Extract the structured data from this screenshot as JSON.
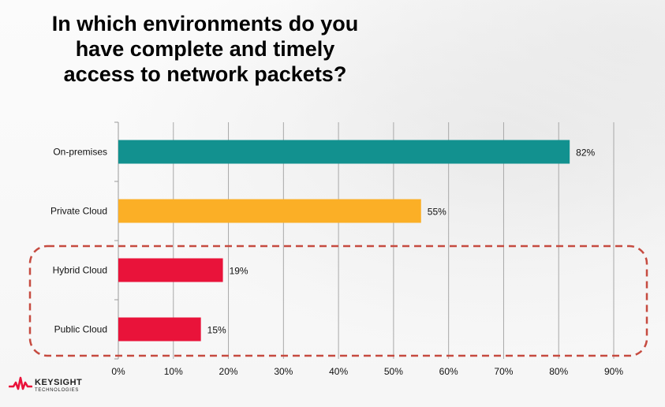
{
  "title_lines": [
    "In which environments do you",
    "have complete and timely",
    "access to network packets?"
  ],
  "logo": {
    "name": "KEYSIGHT",
    "sub": "TECHNOLOGIES",
    "icon": "keysight-wave-icon"
  },
  "colors": {
    "teal": "#12918f",
    "orange": "#fbaf26",
    "red": "#e9133a",
    "highlight_border": "#c64b40"
  },
  "chart_data": {
    "type": "bar",
    "orientation": "horizontal",
    "title": "In which environments do you have complete and timely access to network packets?",
    "categories": [
      "On-premises",
      "Private Cloud",
      "Hybrid Cloud",
      "Public Cloud"
    ],
    "values": [
      82,
      55,
      19,
      15
    ],
    "value_labels": [
      "82%",
      "55%",
      "19%",
      "15%"
    ],
    "bar_colors": [
      "#12918f",
      "#fbaf26",
      "#e9133a",
      "#e9133a"
    ],
    "xlim": [
      0,
      90
    ],
    "xticks": [
      0,
      10,
      20,
      30,
      40,
      50,
      60,
      70,
      80,
      90
    ],
    "xtick_labels": [
      "0%",
      "10%",
      "20%",
      "30%",
      "40%",
      "50%",
      "60%",
      "70%",
      "80%",
      "90%"
    ],
    "grid": "vertical",
    "highlighted_categories": [
      "Hybrid Cloud",
      "Public Cloud"
    ]
  }
}
